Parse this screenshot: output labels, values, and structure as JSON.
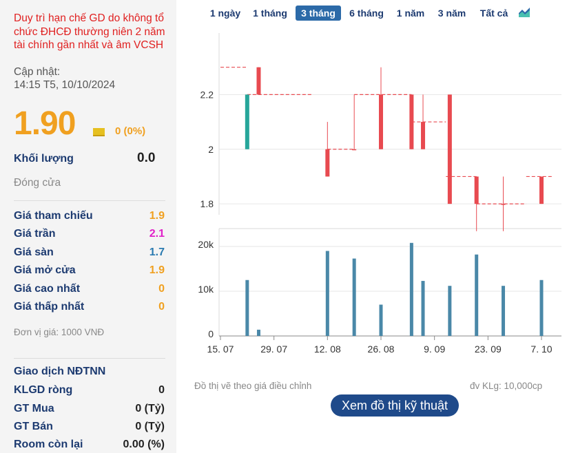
{
  "left": {
    "status_note": "Duy trì hạn chế GD do không tổ chức ĐHCĐ thường niên 2 năm tài chính gần nhất và âm VCSH",
    "update_label": "Cập nhật:",
    "update_time": "14:15 T5, 10/10/2024",
    "price": "1.90",
    "price_change": "0 (0%)",
    "volume_label": "Khối lượng",
    "volume_value": "0.0",
    "close_label": "Đóng cửa",
    "stats": [
      {
        "label": "Giá tham chiếu",
        "value": "1.9",
        "color": "#f0a020"
      },
      {
        "label": "Giá trần",
        "value": "2.1",
        "color": "#e020c8"
      },
      {
        "label": "Giá sàn",
        "value": "1.7",
        "color": "#2a7ab0"
      },
      {
        "label": "Giá mở cửa",
        "value": "1.9",
        "color": "#f0a020"
      },
      {
        "label": "Giá cao nhất",
        "value": "0",
        "color": "#f0a020"
      },
      {
        "label": "Giá thấp nhất",
        "value": "0",
        "color": "#f0a020"
      }
    ],
    "unit_note": "Đơn vị giá: 1000 VNĐ",
    "foreign_title": "Giao dịch NĐTNN",
    "foreign": [
      {
        "label": "KLGD ròng",
        "value": "0"
      },
      {
        "label": "GT Mua",
        "value": "0 (Tỷ)"
      },
      {
        "label": "GT Bán",
        "value": "0 (Tỷ)"
      },
      {
        "label": "Room còn lại",
        "value": "0.00 (%)"
      }
    ]
  },
  "tabs": [
    {
      "label": "1 ngày",
      "active": false
    },
    {
      "label": "1 tháng",
      "active": false
    },
    {
      "label": "3 tháng",
      "active": true
    },
    {
      "label": "6 tháng",
      "active": false
    },
    {
      "label": "1 năm",
      "active": false
    },
    {
      "label": "3 năm",
      "active": false
    },
    {
      "label": "Tất cả",
      "active": false
    }
  ],
  "chart_icon": "area-chart-icon",
  "colors": {
    "up": "#26a69a",
    "down": "#e84a50",
    "ref": "#e84a50",
    "volume": "#4a88a8",
    "accent": "#2c6aa8"
  },
  "chart_data": {
    "type": "bar",
    "price_axis": {
      "ticks": [
        1.8,
        2,
        2.2
      ],
      "ylim": [
        1.76,
        2.4
      ]
    },
    "volume_axis": {
      "ticks": [
        0,
        10000,
        20000
      ],
      "tick_labels": [
        "0",
        "10k",
        "20k"
      ],
      "ylim": [
        0,
        24000
      ]
    },
    "x_ticks": [
      "15. 07",
      "29. 07",
      "12. 08",
      "26. 08",
      "9. 09",
      "23. 09",
      "7. 10"
    ],
    "reference_segments": [
      {
        "from": "2024-07-15",
        "to": "2024-07-22",
        "value": 2.3
      },
      {
        "from": "2024-07-22",
        "to": "2024-08-08",
        "value": 2.2
      },
      {
        "from": "2024-08-12",
        "to": "2024-08-19",
        "value": 2.0
      },
      {
        "from": "2024-08-19",
        "to": "2024-09-03",
        "value": 2.2
      },
      {
        "from": "2024-09-03",
        "to": "2024-09-12",
        "value": 2.1
      },
      {
        "from": "2024-09-12",
        "to": "2024-09-20",
        "value": 1.9
      },
      {
        "from": "2024-09-20",
        "to": "2024-10-03",
        "value": 1.8
      },
      {
        "from": "2024-10-03",
        "to": "2024-10-10",
        "value": 1.9
      }
    ],
    "candles": [
      {
        "date": "2024-07-22",
        "open": 2.0,
        "close": 2.2,
        "high": 2.2,
        "low": 2.0,
        "volume": 12500
      },
      {
        "date": "2024-07-25",
        "open": 2.3,
        "close": 2.2,
        "high": 2.3,
        "low": 2.2,
        "volume": 1400
      },
      {
        "date": "2024-08-12",
        "open": 2.0,
        "close": 1.9,
        "high": 2.1,
        "low": 1.9,
        "volume": 19000
      },
      {
        "date": "2024-08-19",
        "open": 2.0,
        "close": 2.0,
        "high": 2.2,
        "low": 2.0,
        "volume": 17300
      },
      {
        "date": "2024-08-26",
        "open": 2.2,
        "close": 2.0,
        "high": 2.3,
        "low": 2.0,
        "volume": 7000
      },
      {
        "date": "2024-09-03",
        "open": 2.2,
        "close": 2.0,
        "high": 2.2,
        "low": 2.0,
        "volume": 20800
      },
      {
        "date": "2024-09-06",
        "open": 2.1,
        "close": 2.0,
        "high": 2.2,
        "low": 2.0,
        "volume": 12300
      },
      {
        "date": "2024-09-13",
        "open": 2.2,
        "close": 1.8,
        "high": 2.2,
        "low": 1.8,
        "volume": 11200
      },
      {
        "date": "2024-09-20",
        "open": 1.9,
        "close": 1.8,
        "high": 1.9,
        "low": 1.7,
        "volume": 18200
      },
      {
        "date": "2024-09-27",
        "open": 1.8,
        "close": 1.8,
        "high": 1.9,
        "low": 1.7,
        "volume": 11200
      },
      {
        "date": "2024-10-07",
        "open": 1.9,
        "close": 1.8,
        "high": 1.9,
        "low": 1.8,
        "volume": 12500
      }
    ]
  },
  "adjust_note": "Đồ thị vẽ theo giá điều chỉnh",
  "volume_unit": "đv KLg: 10,000cp",
  "tech_button": "Xem đồ thị kỹ thuật"
}
